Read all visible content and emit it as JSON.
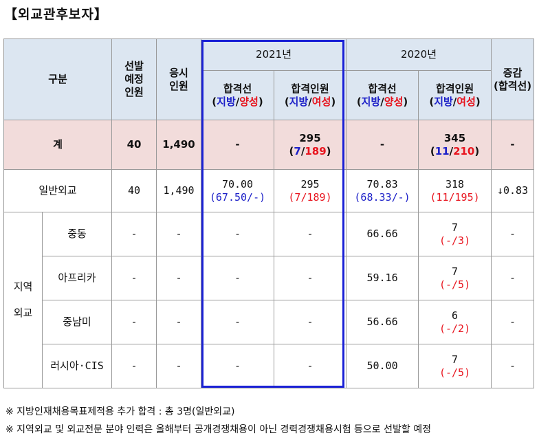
{
  "title": "【외교관후보자】",
  "header": {
    "category": "구분",
    "planned": [
      "선발",
      "예정",
      "인원"
    ],
    "applicants": [
      "응시",
      "인원"
    ],
    "year_2021": "2021년",
    "year_2020": "2020년",
    "change": [
      "증감",
      "(합격선)"
    ],
    "cutoff": "합격선",
    "passers": "합격인원",
    "cutoff_sub": {
      "open": "(",
      "local": "지방",
      "sep": "/",
      "second": "양성",
      "close": ")"
    },
    "passers_sub": {
      "open": "(",
      "local": "지방",
      "sep": "/",
      "second": "여성",
      "close": ")"
    }
  },
  "total_row": {
    "label": "계",
    "planned": "40",
    "applicants": "1,490",
    "cutoff_2021": "-",
    "passers_2021": "295",
    "passers_2021_local": "7",
    "passers_2021_female": "189",
    "cutoff_2020": "-",
    "passers_2020": "345",
    "passers_2020_local": "11",
    "passers_2020_female": "210",
    "change": "-"
  },
  "general_row": {
    "label": "일반외교",
    "planned": "40",
    "applicants": "1,490",
    "cutoff_2021": "70.00",
    "cutoff_2021_sub": "(67.50/-)",
    "passers_2021": "295",
    "passers_2021_sub": "(7/189)",
    "cutoff_2020": "70.83",
    "cutoff_2020_sub": "(68.33/-)",
    "passers_2020": "318",
    "passers_2020_sub": "(11/195)",
    "change": "↓0.83"
  },
  "regional": {
    "group_label": [
      "지역",
      "외교"
    ],
    "rows": [
      {
        "label": "중동",
        "planned": "-",
        "applicants": "-",
        "cutoff_2021": "-",
        "passers_2021": "-",
        "cutoff_2020": "66.66",
        "passers_2020": "7",
        "passers_2020_sub": "(-/3)",
        "change": "-"
      },
      {
        "label": "아프리카",
        "planned": "-",
        "applicants": "-",
        "cutoff_2021": "-",
        "passers_2021": "-",
        "cutoff_2020": "59.16",
        "passers_2020": "7",
        "passers_2020_sub": "(-/5)",
        "change": "-"
      },
      {
        "label": "중남미",
        "planned": "-",
        "applicants": "-",
        "cutoff_2021": "-",
        "passers_2021": "-",
        "cutoff_2020": "56.66",
        "passers_2020": "6",
        "passers_2020_sub": "(-/2)",
        "change": "-"
      },
      {
        "label": "러시아·CIS",
        "planned": "-",
        "applicants": "-",
        "cutoff_2021": "-",
        "passers_2021": "-",
        "cutoff_2020": "50.00",
        "passers_2020": "7",
        "passers_2020_sub": "(-/5)",
        "change": "-"
      }
    ]
  },
  "notes": [
    "※ 지방인재채용목표제적용 추가 합격 : 총 3명(일반외교)",
    "※ 지역외교 및 외교전문 분야 인력은 올해부터 공개경쟁채용이 아닌 경력경쟁채용시험 등으로 선발할 예정"
  ],
  "colors": {
    "header_bg": "#dce6f1",
    "total_bg": "#f2dcdb",
    "local": "#1c20c8",
    "female": "#e8141e",
    "highlight_border": "#1a21d6"
  }
}
